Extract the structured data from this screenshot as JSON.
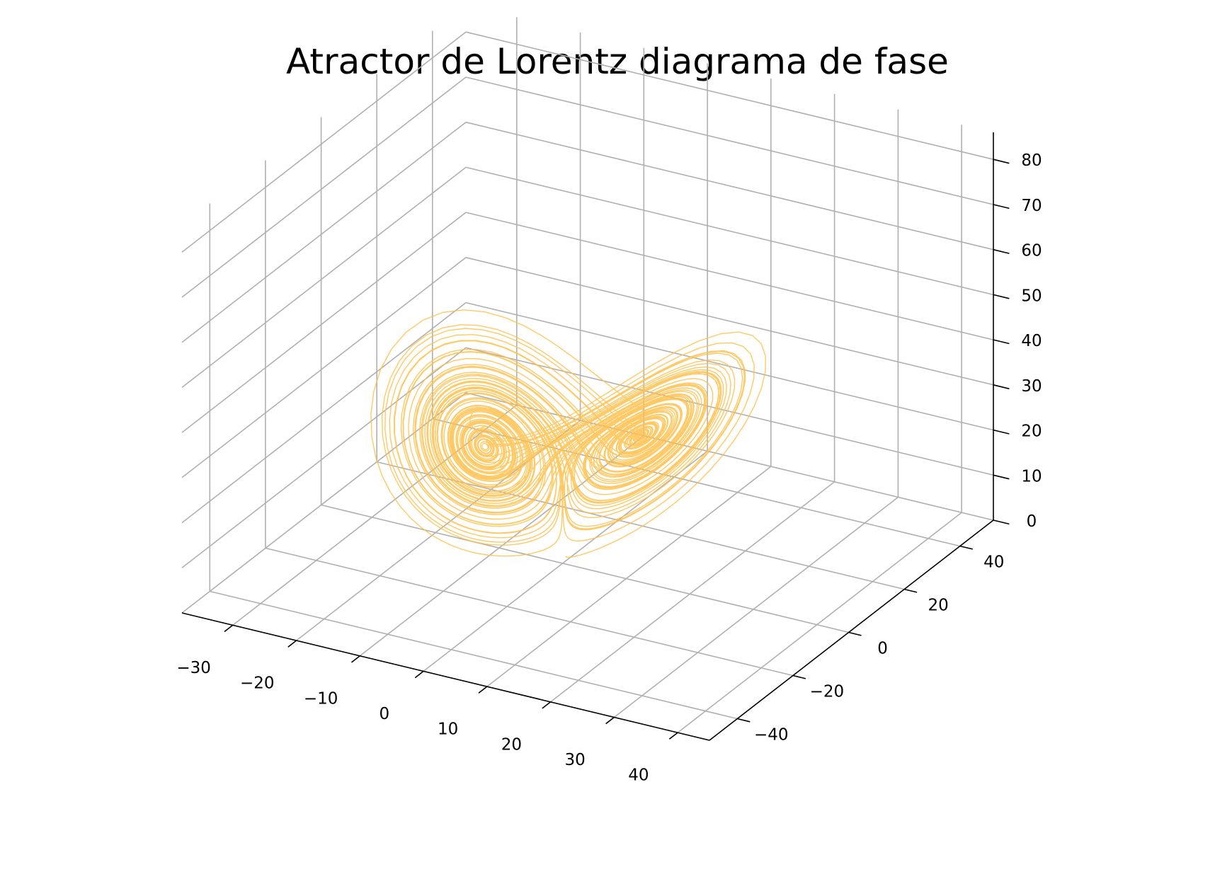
{
  "chart_data": {
    "type": "line",
    "title": "Atractor de Lorentz diagrama de fase",
    "xlabel": "",
    "ylabel": "",
    "zlabel": "",
    "projection": "3d",
    "grid": true,
    "line_color": "#FFBF4A",
    "line_opacity": 0.85,
    "system": {
      "sigma": 10,
      "rho": 28,
      "beta": 2.6667,
      "initial_point": [
        0.0,
        1.0,
        1.05
      ],
      "dt": 0.01,
      "steps": 10000
    },
    "x_axis": {
      "ticks": [
        -30,
        -20,
        -10,
        0,
        10,
        20,
        30,
        40
      ],
      "tick_labels": [
        "−30",
        "−20",
        "−10",
        "0",
        "10",
        "20",
        "30",
        "40"
      ],
      "lim": [
        -38,
        45
      ]
    },
    "y_axis": {
      "ticks": [
        -40,
        -20,
        0,
        20,
        40
      ],
      "tick_labels": [
        "−40",
        "−20",
        "0",
        "20",
        "40"
      ],
      "lim": [
        -50,
        52
      ]
    },
    "z_axis": {
      "ticks": [
        0,
        10,
        20,
        30,
        40,
        50,
        60,
        70,
        80
      ],
      "tick_labels": [
        "0",
        "10",
        "20",
        "30",
        "40",
        "50",
        "60",
        "70",
        "80"
      ],
      "lim": [
        0,
        86
      ]
    }
  }
}
